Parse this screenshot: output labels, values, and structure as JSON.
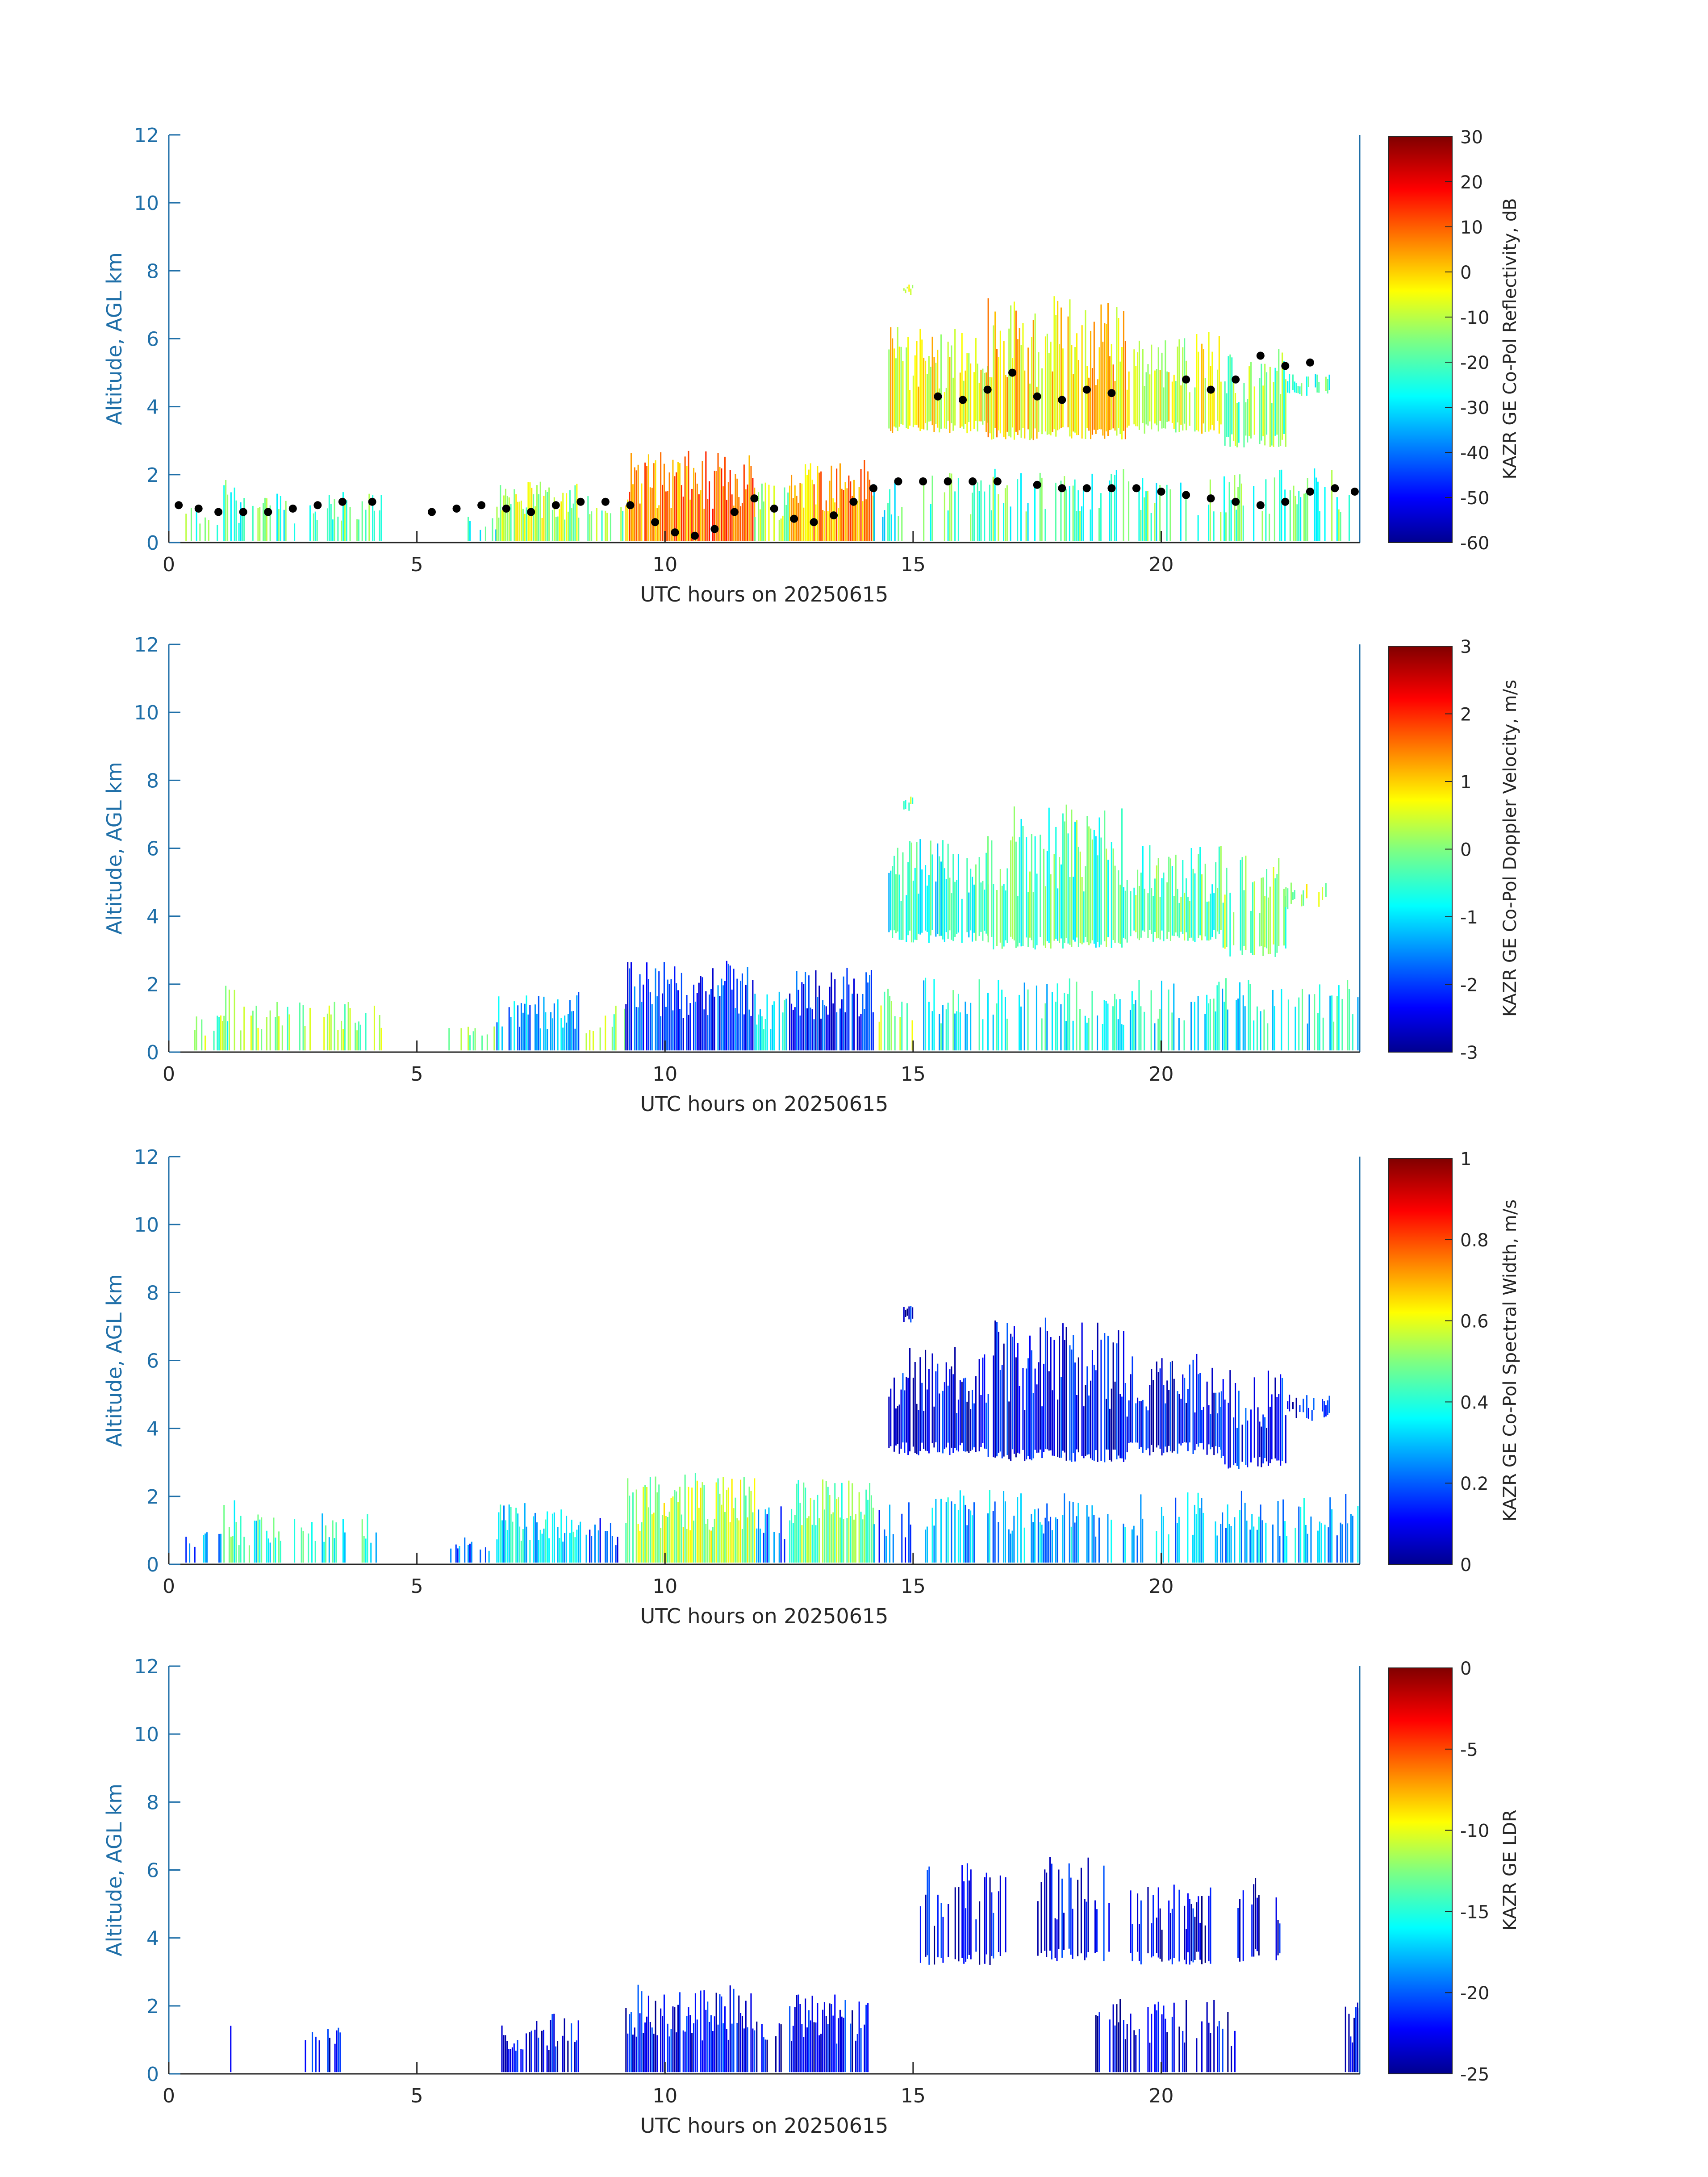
{
  "chart_data": [
    {
      "type": "heatmap",
      "variable": "reflectivity",
      "title": "",
      "xlabel": "UTC hours on 20250615",
      "ylabel": "Altitude, AGL km",
      "xlim": [
        0,
        24
      ],
      "ylim": [
        0,
        12
      ],
      "x_ticks": [
        "0",
        "5",
        "10",
        "15",
        "20"
      ],
      "y_ticks": [
        "0",
        "2",
        "4",
        "6",
        "8",
        "10",
        "12"
      ],
      "colorbar": {
        "label": "KAZR GE Co-Pol Reflectivity, dB",
        "range": [
          -60,
          30
        ],
        "ticks": [
          "-60",
          "-50",
          "-40",
          "-30",
          "-20",
          "-10",
          "0",
          "10",
          "20",
          "30"
        ],
        "colormap": "jet"
      },
      "overlay": "cloud-base points (black dots)",
      "echo_regions": [
        {
          "x0": 0.3,
          "x1": 1.1,
          "y_top": 1.1,
          "level": 0.45,
          "fill": 0.35
        },
        {
          "x0": 1.1,
          "x1": 1.4,
          "y_top": 2.0,
          "level": 0.45,
          "fill": 0.5
        },
        {
          "x0": 1.4,
          "x1": 4.3,
          "y_top": 1.5,
          "level": 0.45,
          "fill": 0.45
        },
        {
          "x0": 5.6,
          "x1": 6.6,
          "y_top": 0.8,
          "level": 0.4,
          "fill": 0.3
        },
        {
          "x0": 6.6,
          "x1": 8.3,
          "y_top": 1.8,
          "level": 0.55,
          "fill": 0.85
        },
        {
          "x0": 8.4,
          "x1": 9.2,
          "y_top": 1.4,
          "level": 0.5,
          "fill": 0.5
        },
        {
          "x0": 9.2,
          "x1": 11.8,
          "y_top": 2.7,
          "level": 0.75,
          "fill": 0.95
        },
        {
          "x0": 11.8,
          "x1": 12.5,
          "y_top": 1.8,
          "level": 0.55,
          "fill": 0.7
        },
        {
          "x0": 12.5,
          "x1": 14.2,
          "y_top": 2.5,
          "level": 0.72,
          "fill": 0.95
        },
        {
          "x0": 14.2,
          "x1": 15.0,
          "y_top": 2.0,
          "level": 0.4,
          "fill": 0.45
        },
        {
          "x0": 14.8,
          "x1": 15.0,
          "y_top": 7.6,
          "y_bot": 7.1,
          "level": 0.55,
          "fill": 0.9
        },
        {
          "x0": 14.5,
          "x1": 16.5,
          "y_top": 6.4,
          "y_bot": 3.2,
          "level": 0.62,
          "fill": 0.9
        },
        {
          "x0": 16.5,
          "x1": 19.3,
          "y_top": 7.3,
          "y_bot": 3.0,
          "level": 0.66,
          "fill": 0.9
        },
        {
          "x0": 19.3,
          "x1": 21.2,
          "y_top": 6.2,
          "y_bot": 3.2,
          "level": 0.58,
          "fill": 0.85
        },
        {
          "x0": 21.2,
          "x1": 22.5,
          "y_top": 5.8,
          "y_bot": 2.8,
          "level": 0.5,
          "fill": 0.75
        },
        {
          "x0": 22.5,
          "x1": 23.4,
          "y_top": 5.0,
          "y_bot": 4.2,
          "level": 0.45,
          "fill": 0.6
        },
        {
          "x0": 15.2,
          "x1": 24.0,
          "y_top": 2.2,
          "level": 0.45,
          "fill": 0.45
        }
      ],
      "cloud_base_points": [
        [
          0.2,
          1.1
        ],
        [
          0.6,
          1.0
        ],
        [
          1.0,
          0.9
        ],
        [
          1.5,
          0.9
        ],
        [
          2.0,
          0.9
        ],
        [
          2.5,
          1.0
        ],
        [
          3.0,
          1.1
        ],
        [
          3.5,
          1.2
        ],
        [
          4.1,
          1.2
        ],
        [
          5.3,
          0.9
        ],
        [
          5.8,
          1.0
        ],
        [
          6.3,
          1.1
        ],
        [
          6.8,
          1.0
        ],
        [
          7.3,
          0.9
        ],
        [
          7.8,
          1.1
        ],
        [
          8.3,
          1.2
        ],
        [
          8.8,
          1.2
        ],
        [
          9.3,
          1.1
        ],
        [
          9.8,
          0.6
        ],
        [
          10.2,
          0.3
        ],
        [
          10.6,
          0.2
        ],
        [
          11.0,
          0.4
        ],
        [
          11.4,
          0.9
        ],
        [
          11.8,
          1.3
        ],
        [
          12.2,
          1.0
        ],
        [
          12.6,
          0.7
        ],
        [
          13.0,
          0.6
        ],
        [
          13.4,
          0.8
        ],
        [
          13.8,
          1.2
        ],
        [
          14.2,
          1.6
        ],
        [
          14.7,
          1.8
        ],
        [
          15.2,
          1.8
        ],
        [
          15.7,
          1.8
        ],
        [
          16.2,
          1.8
        ],
        [
          16.7,
          1.8
        ],
        [
          17.5,
          1.7
        ],
        [
          18.0,
          1.6
        ],
        [
          18.5,
          1.6
        ],
        [
          19.0,
          1.6
        ],
        [
          19.5,
          1.6
        ],
        [
          20.0,
          1.5
        ],
        [
          20.5,
          1.4
        ],
        [
          21.0,
          1.3
        ],
        [
          21.5,
          1.2
        ],
        [
          22.0,
          1.1
        ],
        [
          22.5,
          1.2
        ],
        [
          23.0,
          1.5
        ],
        [
          23.5,
          1.6
        ],
        [
          23.9,
          1.5
        ],
        [
          15.5,
          4.3
        ],
        [
          16.0,
          4.2
        ],
        [
          16.5,
          4.5
        ],
        [
          17.0,
          5.0
        ],
        [
          17.5,
          4.3
        ],
        [
          18.0,
          4.2
        ],
        [
          18.5,
          4.5
        ],
        [
          19.0,
          4.4
        ],
        [
          20.5,
          4.8
        ],
        [
          21.0,
          4.5
        ],
        [
          21.5,
          4.8
        ],
        [
          22.0,
          5.5
        ],
        [
          22.5,
          5.2
        ],
        [
          23.0,
          5.3
        ]
      ]
    },
    {
      "type": "heatmap",
      "variable": "doppler_velocity",
      "title": "",
      "xlabel": "UTC hours on 20250615",
      "ylabel": "Altitude, AGL km",
      "xlim": [
        0,
        24
      ],
      "ylim": [
        0,
        12
      ],
      "x_ticks": [
        "0",
        "5",
        "10",
        "15",
        "20"
      ],
      "y_ticks": [
        "0",
        "2",
        "4",
        "6",
        "8",
        "10",
        "12"
      ],
      "colorbar": {
        "label": "KAZR GE Co-Pol Doppler Velocity, m/s",
        "range": [
          -3,
          3
        ],
        "ticks": [
          "-3",
          "-2",
          "-1",
          "0",
          "1",
          "2",
          "3"
        ],
        "colormap": "jet"
      },
      "echo_regions": [
        {
          "x0": 0.3,
          "x1": 1.1,
          "y_top": 1.1,
          "level": 0.5,
          "fill": 0.3
        },
        {
          "x0": 1.1,
          "x1": 1.4,
          "y_top": 2.0,
          "level": 0.45,
          "fill": 0.5
        },
        {
          "x0": 1.4,
          "x1": 4.3,
          "y_top": 1.5,
          "level": 0.52,
          "fill": 0.45
        },
        {
          "x0": 5.6,
          "x1": 6.6,
          "y_top": 0.8,
          "level": 0.48,
          "fill": 0.3
        },
        {
          "x0": 6.6,
          "x1": 8.3,
          "y_top": 1.8,
          "level": 0.28,
          "fill": 0.85
        },
        {
          "x0": 8.4,
          "x1": 9.2,
          "y_top": 1.4,
          "level": 0.5,
          "fill": 0.5
        },
        {
          "x0": 9.2,
          "x1": 11.8,
          "y_top": 2.7,
          "level": 0.18,
          "fill": 0.95
        },
        {
          "x0": 11.8,
          "x1": 12.5,
          "y_top": 1.8,
          "level": 0.35,
          "fill": 0.7
        },
        {
          "x0": 12.5,
          "x1": 14.2,
          "y_top": 2.5,
          "level": 0.16,
          "fill": 0.95
        },
        {
          "x0": 14.2,
          "x1": 15.0,
          "y_top": 2.0,
          "level": 0.52,
          "fill": 0.45
        },
        {
          "x0": 14.8,
          "x1": 15.0,
          "y_top": 7.6,
          "y_bot": 7.1,
          "level": 0.5,
          "fill": 0.9
        },
        {
          "x0": 14.5,
          "x1": 16.5,
          "y_top": 6.4,
          "y_bot": 3.2,
          "level": 0.4,
          "fill": 0.9
        },
        {
          "x0": 16.5,
          "x1": 19.3,
          "y_top": 7.3,
          "y_bot": 3.0,
          "level": 0.45,
          "fill": 0.9
        },
        {
          "x0": 19.3,
          "x1": 21.2,
          "y_top": 6.2,
          "y_bot": 3.2,
          "level": 0.47,
          "fill": 0.85
        },
        {
          "x0": 21.2,
          "x1": 22.5,
          "y_top": 5.8,
          "y_bot": 2.8,
          "level": 0.5,
          "fill": 0.75
        },
        {
          "x0": 22.5,
          "x1": 23.4,
          "y_top": 5.0,
          "y_bot": 4.2,
          "level": 0.56,
          "fill": 0.6
        },
        {
          "x0": 15.2,
          "x1": 24.0,
          "y_top": 2.2,
          "level": 0.38,
          "fill": 0.45
        }
      ]
    },
    {
      "type": "heatmap",
      "variable": "spectral_width",
      "title": "",
      "xlabel": "UTC hours on 20250615",
      "ylabel": "Altitude, AGL km",
      "xlim": [
        0,
        24
      ],
      "ylim": [
        0,
        12
      ],
      "x_ticks": [
        "0",
        "5",
        "10",
        "15",
        "20"
      ],
      "y_ticks": [
        "0",
        "2",
        "4",
        "6",
        "8",
        "10",
        "12"
      ],
      "colorbar": {
        "label": "KAZR GE Co-Pol Spectral Width, m/s",
        "range": [
          0,
          1
        ],
        "ticks": [
          "0",
          "0.2",
          "0.4",
          "0.6",
          "0.8",
          "1"
        ],
        "colormap": "jet"
      },
      "echo_regions": [
        {
          "x0": 0.3,
          "x1": 1.1,
          "y_top": 1.1,
          "level": 0.25,
          "fill": 0.3
        },
        {
          "x0": 1.1,
          "x1": 1.4,
          "y_top": 2.0,
          "level": 0.45,
          "fill": 0.5
        },
        {
          "x0": 1.4,
          "x1": 4.3,
          "y_top": 1.5,
          "level": 0.4,
          "fill": 0.45
        },
        {
          "x0": 5.6,
          "x1": 6.6,
          "y_top": 0.8,
          "level": 0.25,
          "fill": 0.3
        },
        {
          "x0": 6.6,
          "x1": 8.3,
          "y_top": 1.8,
          "level": 0.35,
          "fill": 0.85
        },
        {
          "x0": 8.4,
          "x1": 9.2,
          "y_top": 1.4,
          "level": 0.2,
          "fill": 0.5
        },
        {
          "x0": 9.2,
          "x1": 11.8,
          "y_top": 2.7,
          "level": 0.55,
          "fill": 0.95
        },
        {
          "x0": 11.8,
          "x1": 12.5,
          "y_top": 1.8,
          "level": 0.25,
          "fill": 0.7
        },
        {
          "x0": 12.5,
          "x1": 14.2,
          "y_top": 2.5,
          "level": 0.5,
          "fill": 0.95
        },
        {
          "x0": 14.2,
          "x1": 15.0,
          "y_top": 2.0,
          "level": 0.2,
          "fill": 0.45
        },
        {
          "x0": 14.8,
          "x1": 15.0,
          "y_top": 7.6,
          "y_bot": 7.1,
          "level": 0.1,
          "fill": 0.9
        },
        {
          "x0": 14.5,
          "x1": 16.5,
          "y_top": 6.4,
          "y_bot": 3.2,
          "level": 0.12,
          "fill": 0.9
        },
        {
          "x0": 16.5,
          "x1": 19.3,
          "y_top": 7.3,
          "y_bot": 3.0,
          "level": 0.11,
          "fill": 0.9
        },
        {
          "x0": 19.3,
          "x1": 21.2,
          "y_top": 6.2,
          "y_bot": 3.2,
          "level": 0.12,
          "fill": 0.85
        },
        {
          "x0": 21.2,
          "x1": 22.5,
          "y_top": 5.8,
          "y_bot": 2.8,
          "level": 0.13,
          "fill": 0.75
        },
        {
          "x0": 22.5,
          "x1": 23.4,
          "y_top": 5.0,
          "y_bot": 4.2,
          "level": 0.13,
          "fill": 0.6
        },
        {
          "x0": 15.2,
          "x1": 24.0,
          "y_top": 2.2,
          "level": 0.3,
          "fill": 0.45
        }
      ]
    },
    {
      "type": "heatmap",
      "variable": "ldr",
      "title": "",
      "xlabel": "UTC hours on 20250615",
      "ylabel": "Altitude, AGL km",
      "xlim": [
        0,
        24
      ],
      "ylim": [
        0,
        12
      ],
      "x_ticks": [
        "0",
        "5",
        "10",
        "15",
        "20"
      ],
      "y_ticks": [
        "0",
        "2",
        "4",
        "6",
        "8",
        "10",
        "12"
      ],
      "colorbar": {
        "label": "KAZR GE LDR",
        "range": [
          -25,
          0
        ],
        "ticks": [
          "-25",
          "-20",
          "-15",
          "-10",
          "-5",
          "0"
        ],
        "colormap": "jet"
      },
      "echo_regions": [
        {
          "x0": 1.2,
          "x1": 1.3,
          "y_top": 1.6,
          "level": 0.1,
          "fill": 0.5
        },
        {
          "x0": 2.6,
          "x1": 3.5,
          "y_top": 1.4,
          "level": 0.1,
          "fill": 0.25
        },
        {
          "x0": 6.7,
          "x1": 8.3,
          "y_top": 1.8,
          "level": 0.1,
          "fill": 0.8
        },
        {
          "x0": 9.2,
          "x1": 11.8,
          "y_top": 2.7,
          "level": 0.12,
          "fill": 0.92
        },
        {
          "x0": 11.8,
          "x1": 12.4,
          "y_top": 1.7,
          "level": 0.1,
          "fill": 0.55
        },
        {
          "x0": 12.5,
          "x1": 14.1,
          "y_top": 2.4,
          "level": 0.11,
          "fill": 0.9
        },
        {
          "x0": 15.1,
          "x1": 16.9,
          "y_top": 6.3,
          "y_bot": 3.2,
          "level": 0.1,
          "fill": 0.6
        },
        {
          "x0": 17.5,
          "x1": 19.0,
          "y_top": 6.4,
          "y_bot": 3.3,
          "level": 0.1,
          "fill": 0.55
        },
        {
          "x0": 19.3,
          "x1": 21.0,
          "y_top": 5.6,
          "y_bot": 3.2,
          "level": 0.1,
          "fill": 0.5
        },
        {
          "x0": 21.5,
          "x1": 22.4,
          "y_top": 5.8,
          "y_bot": 3.3,
          "level": 0.1,
          "fill": 0.3
        },
        {
          "x0": 18.6,
          "x1": 21.5,
          "y_top": 2.2,
          "level": 0.1,
          "fill": 0.55
        },
        {
          "x0": 23.7,
          "x1": 24.0,
          "y_top": 2.1,
          "level": 0.1,
          "fill": 0.7
        }
      ]
    }
  ]
}
